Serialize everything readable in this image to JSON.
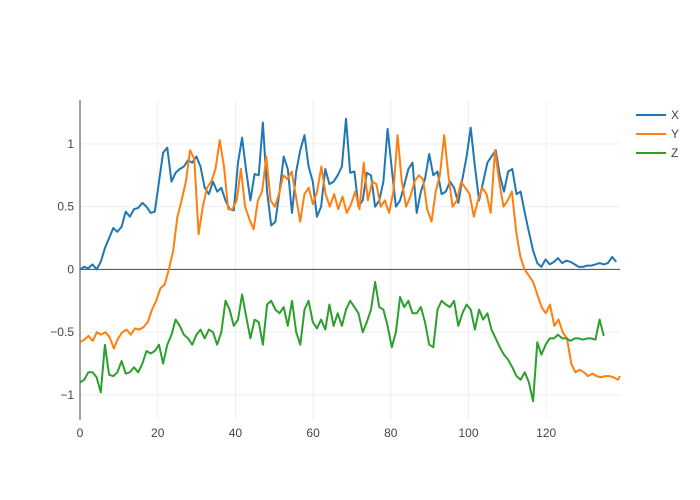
{
  "chart_data": {
    "type": "line",
    "xlim": [
      0,
      139
    ],
    "ylim": [
      -1.2,
      1.35
    ],
    "x_ticks": [
      0,
      20,
      40,
      60,
      80,
      100,
      120
    ],
    "y_ticks": [
      -1,
      -0.5,
      0,
      0.5,
      1
    ],
    "x_tick_labels": [
      "0",
      "20",
      "40",
      "60",
      "80",
      "100",
      "120"
    ],
    "y_tick_labels": [
      "−1",
      "−0.5",
      "0",
      "0.5",
      "1"
    ],
    "grid": true,
    "zero_line": true,
    "legend_position": "top-right",
    "series": [
      {
        "name": "X",
        "color": "#1f77b4",
        "values": [
          0.0,
          0.02,
          0.01,
          0.04,
          0.0,
          0.06,
          0.17,
          0.25,
          0.33,
          0.3,
          0.34,
          0.46,
          0.42,
          0.48,
          0.49,
          0.53,
          0.5,
          0.45,
          0.46,
          0.7,
          0.93,
          0.97,
          0.7,
          0.77,
          0.8,
          0.82,
          0.87,
          0.85,
          0.9,
          0.82,
          0.65,
          0.6,
          0.7,
          0.62,
          0.65,
          0.55,
          0.48,
          0.47,
          0.85,
          1.05,
          0.78,
          0.55,
          0.76,
          0.75,
          1.17,
          0.62,
          0.35,
          0.38,
          0.62,
          0.9,
          0.8,
          0.45,
          0.78,
          0.95,
          1.07,
          0.82,
          0.7,
          0.42,
          0.5,
          0.8,
          0.68,
          0.7,
          0.75,
          0.82,
          1.2,
          0.77,
          0.78,
          0.5,
          0.55,
          0.77,
          0.75,
          0.5,
          0.55,
          0.7,
          1.12,
          0.8,
          0.5,
          0.55,
          0.67,
          0.8,
          0.85,
          0.45,
          0.62,
          0.72,
          0.92,
          0.75,
          0.78,
          0.6,
          0.62,
          0.7,
          0.65,
          0.53,
          0.72,
          0.9,
          1.13,
          0.82,
          0.55,
          0.7,
          0.85,
          0.9,
          0.95,
          0.75,
          0.62,
          0.78,
          0.8,
          0.6,
          0.62,
          0.45,
          0.3,
          0.15,
          0.05,
          0.02,
          0.08,
          0.04,
          0.06,
          0.09,
          0.05,
          0.07,
          0.06,
          0.04,
          0.02,
          0.02,
          0.03,
          0.03,
          0.04,
          0.05,
          0.04,
          0.05,
          0.1,
          0.06
        ],
        "x_start": 0,
        "x_step": 1.07
      },
      {
        "name": "Y",
        "color": "#ff7f0e",
        "values": [
          -0.58,
          -0.56,
          -0.53,
          -0.57,
          -0.5,
          -0.52,
          -0.5,
          -0.54,
          -0.63,
          -0.55,
          -0.5,
          -0.48,
          -0.52,
          -0.47,
          -0.48,
          -0.46,
          -0.42,
          -0.32,
          -0.25,
          -0.15,
          -0.12,
          0.0,
          0.15,
          0.42,
          0.55,
          0.7,
          0.95,
          0.88,
          0.28,
          0.5,
          0.65,
          0.7,
          0.8,
          1.03,
          0.82,
          0.48,
          0.48,
          0.55,
          0.8,
          0.5,
          0.4,
          0.32,
          0.55,
          0.62,
          0.9,
          0.55,
          0.5,
          0.6,
          0.75,
          0.72,
          0.78,
          0.58,
          0.38,
          0.6,
          0.65,
          0.52,
          0.62,
          0.82,
          0.6,
          0.5,
          0.6,
          0.48,
          0.58,
          0.45,
          0.52,
          0.62,
          0.48,
          0.85,
          0.55,
          0.7,
          0.68,
          0.5,
          0.55,
          0.45,
          0.62,
          1.07,
          0.7,
          0.5,
          0.58,
          0.7,
          0.75,
          0.72,
          0.48,
          0.38,
          0.62,
          0.75,
          1.07,
          0.75,
          0.5,
          0.55,
          0.7,
          0.65,
          0.6,
          0.42,
          0.55,
          0.65,
          0.6,
          0.45,
          0.95,
          0.7,
          0.5,
          0.55,
          0.62,
          0.3,
          0.1,
          0.0,
          -0.05,
          -0.1,
          -0.2,
          -0.3,
          -0.35,
          -0.28,
          -0.45,
          -0.4,
          -0.5,
          -0.55,
          -0.75,
          -0.82,
          -0.8,
          -0.82,
          -0.85,
          -0.83,
          -0.85,
          -0.86,
          -0.85,
          -0.85,
          -0.86,
          -0.88,
          -0.85
        ],
        "x_start": 0,
        "x_step": 1.09
      },
      {
        "name": "Z",
        "color": "#2ca02c",
        "values": [
          -0.9,
          -0.88,
          -0.82,
          -0.82,
          -0.86,
          -0.98,
          -0.6,
          -0.84,
          -0.85,
          -0.82,
          -0.73,
          -0.83,
          -0.82,
          -0.78,
          -0.82,
          -0.75,
          -0.65,
          -0.67,
          -0.65,
          -0.6,
          -0.75,
          -0.6,
          -0.52,
          -0.4,
          -0.45,
          -0.52,
          -0.55,
          -0.6,
          -0.52,
          -0.48,
          -0.55,
          -0.48,
          -0.5,
          -0.6,
          -0.5,
          -0.25,
          -0.32,
          -0.45,
          -0.4,
          -0.2,
          -0.38,
          -0.55,
          -0.4,
          -0.42,
          -0.6,
          -0.28,
          -0.25,
          -0.32,
          -0.35,
          -0.3,
          -0.45,
          -0.25,
          -0.5,
          -0.6,
          -0.32,
          -0.25,
          -0.42,
          -0.47,
          -0.4,
          -0.48,
          -0.28,
          -0.45,
          -0.35,
          -0.45,
          -0.32,
          -0.25,
          -0.3,
          -0.35,
          -0.5,
          -0.42,
          -0.32,
          -0.1,
          -0.3,
          -0.32,
          -0.45,
          -0.62,
          -0.5,
          -0.22,
          -0.3,
          -0.25,
          -0.35,
          -0.35,
          -0.3,
          -0.42,
          -0.6,
          -0.62,
          -0.32,
          -0.25,
          -0.28,
          -0.3,
          -0.25,
          -0.45,
          -0.35,
          -0.28,
          -0.32,
          -0.48,
          -0.32,
          -0.4,
          -0.35,
          -0.48,
          -0.55,
          -0.62,
          -0.68,
          -0.72,
          -0.78,
          -0.85,
          -0.88,
          -0.82,
          -0.9,
          -1.05,
          -0.58,
          -0.68,
          -0.6,
          -0.55,
          -0.55,
          -0.52,
          -0.55,
          -0.55,
          -0.57,
          -0.55,
          -0.55,
          -0.56,
          -0.55,
          -0.55,
          -0.56,
          -0.4,
          -0.53
        ],
        "x_start": 0,
        "x_step": 1.07
      }
    ]
  }
}
